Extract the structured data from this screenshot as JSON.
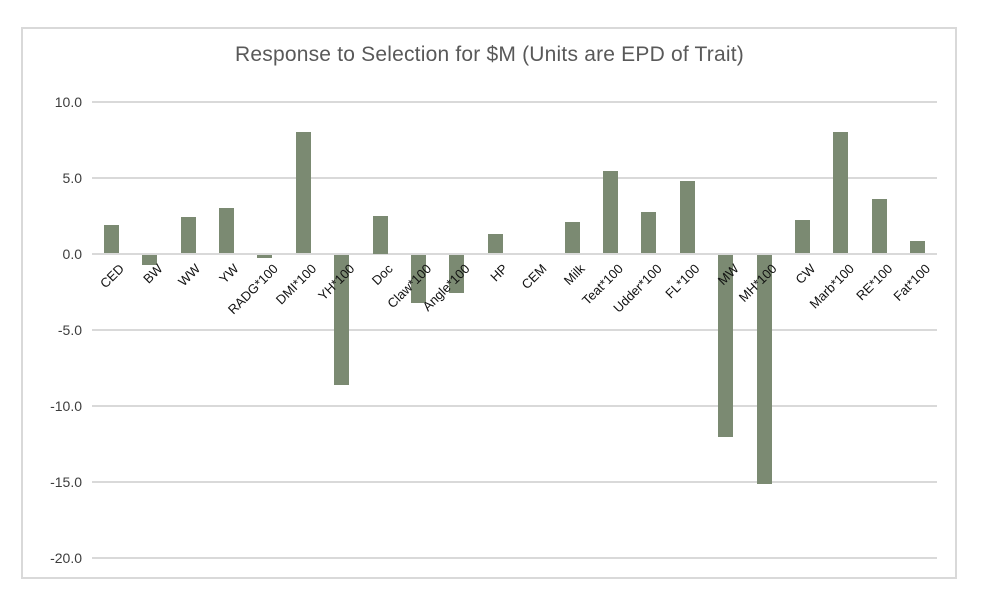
{
  "chart": {
    "title": "Response to Selection for $M (Units are EPD of Trait)"
  },
  "chart_data": {
    "type": "bar",
    "title": "Response to Selection for $M (Units are EPD of Trait)",
    "categories": [
      "CED",
      "BW",
      "WW",
      "YW",
      "RADG*100",
      "DMI*100",
      "YH*100",
      "Doc",
      "Claw*100",
      "Angle*100",
      "HP",
      "CEM",
      "Milk",
      "Teat*100",
      "Udder*100",
      "FL*100",
      "MW",
      "MH*100",
      "CW",
      "Marb*100",
      "RE*100",
      "Fat*100"
    ],
    "values": [
      1.9,
      -0.7,
      2.4,
      3.0,
      -0.2,
      8.0,
      -8.6,
      2.5,
      -3.2,
      -2.5,
      1.3,
      0.0,
      2.1,
      5.4,
      2.7,
      4.8,
      -12.0,
      -15.1,
      2.2,
      8.0,
      3.6,
      0.8
    ],
    "xlabel": "",
    "ylabel": "",
    "ylim": [
      -20,
      10
    ],
    "ytick_labels": [
      "10.0",
      "5.0",
      "0.0",
      "-5.0",
      "-10.0",
      "-15.0",
      "-20.0"
    ],
    "yticks": [
      10,
      5,
      0,
      -5,
      -10,
      -15,
      -20
    ],
    "grid": true,
    "legend": false,
    "colors": {
      "bar": "#7b8a72",
      "grid": "#d9d9d9",
      "title_text": "#595959",
      "axis_tick_text": "#3d3d3d",
      "category_text": "#111111"
    }
  }
}
